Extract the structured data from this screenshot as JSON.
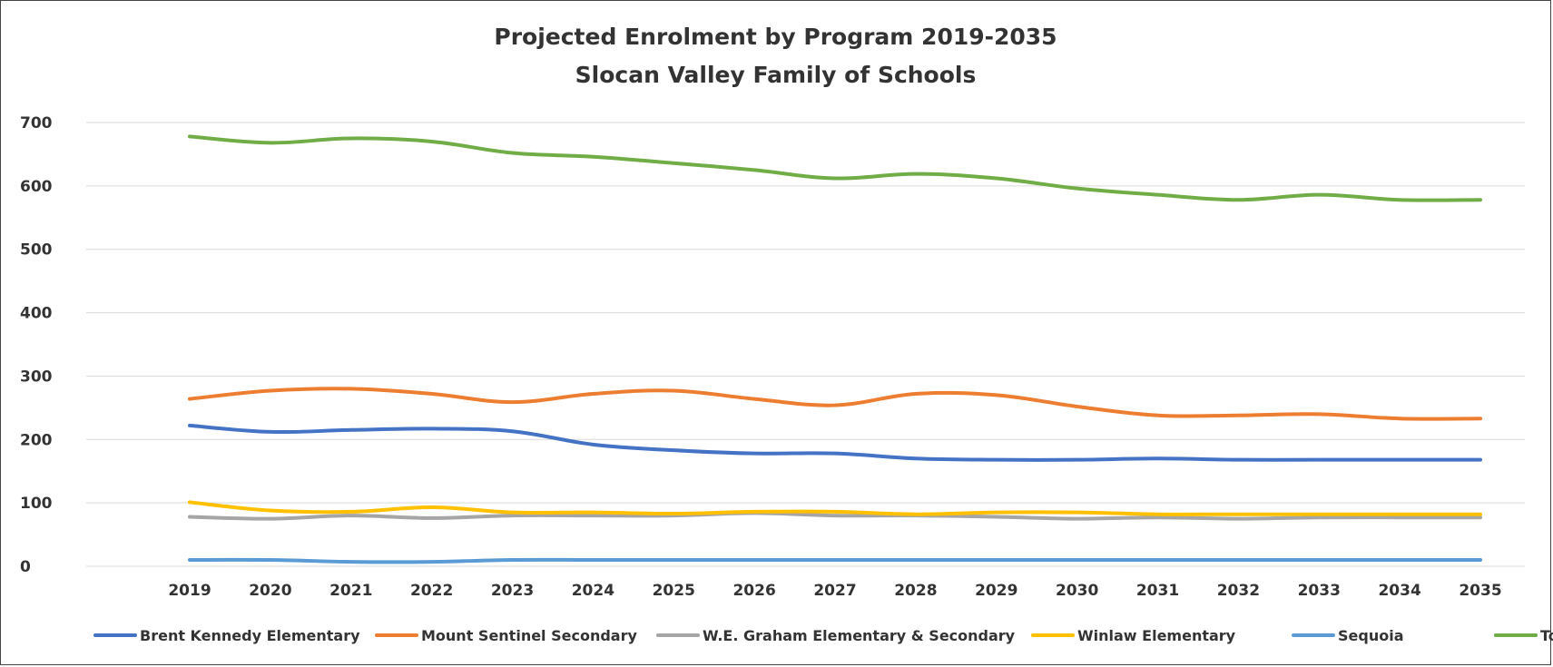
{
  "chart_data": {
    "type": "line",
    "title": "Projected Enrolment by Program 2019-2035",
    "subtitle": "Slocan Valley Family of Schools",
    "x": [
      "2019",
      "2020",
      "2021",
      "2022",
      "2023",
      "2024",
      "2025",
      "2026",
      "2027",
      "2028",
      "2029",
      "2030",
      "2031",
      "2032",
      "2033",
      "2034",
      "2035"
    ],
    "ylim": [
      0,
      700
    ],
    "yticks": [
      "0",
      "100",
      "200",
      "300",
      "400",
      "500",
      "600",
      "700"
    ],
    "grid": true,
    "legend": "bottom",
    "series": [
      {
        "name": "Brent Kennedy Elementary",
        "color": "#4472C4",
        "values": [
          222,
          212,
          215,
          217,
          213,
          192,
          183,
          178,
          178,
          170,
          168,
          168,
          170,
          168,
          168,
          168,
          168
        ]
      },
      {
        "name": "Mount Sentinel Secondary",
        "color": "#ED7D31",
        "values": [
          264,
          277,
          280,
          272,
          259,
          272,
          277,
          264,
          254,
          272,
          270,
          252,
          238,
          238,
          240,
          233,
          233
        ]
      },
      {
        "name": "W.E. Graham Elementary & Secondary",
        "color": "#A5A5A5",
        "values": [
          78,
          75,
          80,
          76,
          80,
          80,
          80,
          84,
          80,
          80,
          78,
          75,
          77,
          75,
          77,
          77,
          77
        ]
      },
      {
        "name": "Winlaw Elementary",
        "color": "#FFC000",
        "values": [
          101,
          88,
          86,
          93,
          85,
          85,
          83,
          86,
          86,
          82,
          85,
          85,
          82,
          82,
          82,
          82,
          82
        ]
      },
      {
        "name": "Sequoia",
        "color": "#5B9BD5",
        "values": [
          10,
          10,
          7,
          7,
          10,
          10,
          10,
          10,
          10,
          10,
          10,
          10,
          10,
          10,
          10,
          10,
          10
        ]
      },
      {
        "name": "Total",
        "color": "#70AD47",
        "values": [
          678,
          668,
          675,
          670,
          652,
          646,
          636,
          625,
          612,
          619,
          612,
          596,
          586,
          578,
          586,
          578,
          578
        ]
      }
    ]
  }
}
